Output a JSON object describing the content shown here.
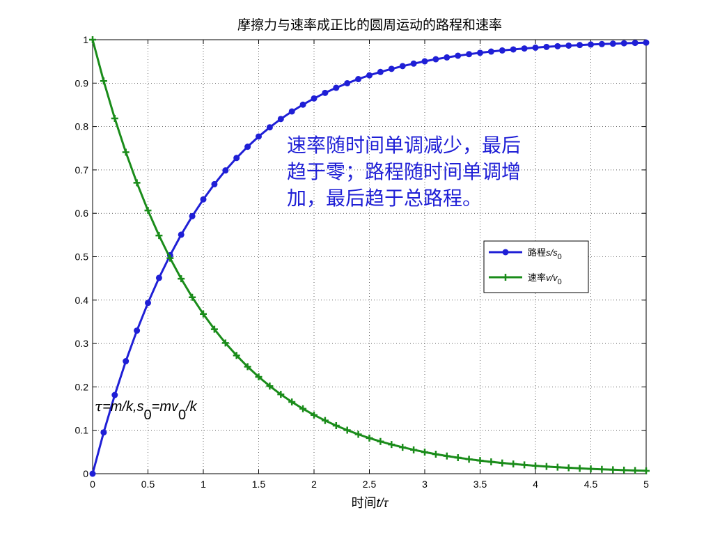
{
  "chart_data": {
    "type": "line",
    "title": "摩擦力与速率成正比的圆周运动的路程和速率",
    "xlabel_prefix": "时间",
    "xlabel_var": "t/τ",
    "xlim": [
      0,
      5
    ],
    "ylim": [
      0,
      1
    ],
    "xticks": [
      0,
      0.5,
      1,
      1.5,
      2,
      2.5,
      3,
      3.5,
      4,
      4.5,
      5
    ],
    "yticks": [
      0,
      0.1,
      0.2,
      0.3,
      0.4,
      0.5,
      0.6,
      0.7,
      0.8,
      0.9,
      1
    ],
    "xtick_labels": [
      "0",
      "0.5",
      "1",
      "1.5",
      "2",
      "2.5",
      "3",
      "3.5",
      "4",
      "4.5",
      "5"
    ],
    "ytick_labels": [
      "0",
      "0.1",
      "0.2",
      "0.3",
      "0.4",
      "0.5",
      "0.6",
      "0.7",
      "0.8",
      "0.9",
      "1"
    ],
    "grid": true,
    "legend_position": "right-middle",
    "x": [
      0,
      0.1,
      0.2,
      0.3,
      0.4,
      0.5,
      0.6,
      0.7,
      0.8,
      0.9,
      1.0,
      1.1,
      1.2,
      1.3,
      1.4,
      1.5,
      1.6,
      1.7,
      1.8,
      1.9,
      2.0,
      2.1,
      2.2,
      2.3,
      2.4,
      2.5,
      2.6,
      2.7,
      2.8,
      2.9,
      3.0,
      3.1,
      3.2,
      3.3,
      3.4,
      3.5,
      3.6,
      3.7,
      3.8,
      3.9,
      4.0,
      4.1,
      4.2,
      4.3,
      4.4,
      4.5,
      4.6,
      4.7,
      4.8,
      4.9,
      5.0
    ],
    "series": [
      {
        "name_prefix": "路程",
        "name_var": "s/s",
        "name_sub": "0",
        "color": "#1f1fd6",
        "marker": "circle",
        "values": [
          0,
          0.0952,
          0.1813,
          0.2592,
          0.3297,
          0.3935,
          0.4512,
          0.5034,
          0.5507,
          0.5934,
          0.6321,
          0.6671,
          0.6988,
          0.7275,
          0.7534,
          0.7769,
          0.7981,
          0.8173,
          0.8347,
          0.8504,
          0.8647,
          0.8775,
          0.8892,
          0.8997,
          0.9093,
          0.9179,
          0.9257,
          0.9328,
          0.9392,
          0.945,
          0.9502,
          0.955,
          0.9592,
          0.9631,
          0.9666,
          0.9698,
          0.9727,
          0.9753,
          0.9776,
          0.9798,
          0.9817,
          0.9834,
          0.985,
          0.9864,
          0.9877,
          0.9889,
          0.9899,
          0.9909,
          0.9918,
          0.9926,
          0.9933
        ]
      },
      {
        "name_prefix": "速率",
        "name_var": "v/v",
        "name_sub": "0",
        "color": "#1a8c1a",
        "marker": "plus",
        "values": [
          1,
          0.9048,
          0.8187,
          0.7408,
          0.6703,
          0.6065,
          0.5488,
          0.4966,
          0.4493,
          0.4066,
          0.3679,
          0.3329,
          0.3012,
          0.2725,
          0.2466,
          0.2231,
          0.2019,
          0.1827,
          0.1653,
          0.1496,
          0.1353,
          0.1225,
          0.1108,
          0.1003,
          0.0907,
          0.0821,
          0.0743,
          0.0672,
          0.0608,
          0.055,
          0.0498,
          0.045,
          0.0408,
          0.0369,
          0.0334,
          0.0302,
          0.0273,
          0.0247,
          0.0224,
          0.0202,
          0.0183,
          0.0166,
          0.015,
          0.0136,
          0.0123,
          0.0111,
          0.0101,
          0.0091,
          0.0082,
          0.0074,
          0.0067
        ]
      }
    ],
    "annotation_lines": [
      "速率随时间单调减少，最后",
      "趋于零；路程随时间单调增",
      "加，最后趋于总路程。"
    ],
    "formula": {
      "tau": "τ",
      "eq1": "=m/k,s",
      "sub1": "0",
      "eq2": "=mv",
      "sub2": "0",
      "tail": "/k"
    }
  }
}
